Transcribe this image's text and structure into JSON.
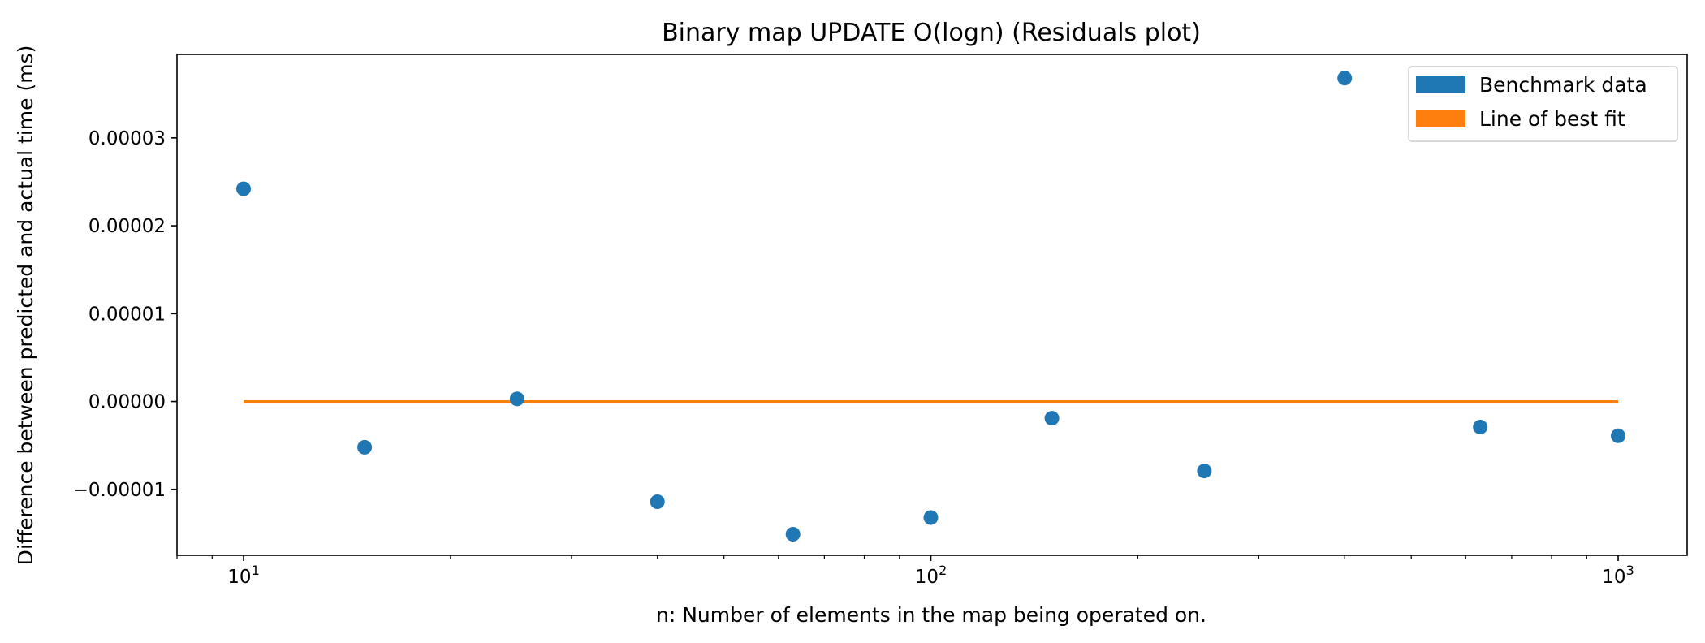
{
  "chart_data": {
    "type": "scatter",
    "title": "Binary map UPDATE O(logn)  (Residuals plot)",
    "xlabel": "n: Number of elements in the map being operated on.",
    "ylabel": "Difference between predicted and actual time (ms)",
    "xscale": "log",
    "xlim": [
      8.0,
      1260
    ],
    "ylim": [
      -1.75e-05,
      3.95e-05
    ],
    "x_ticks": [
      {
        "value": 10,
        "base": "10",
        "exp": "1"
      },
      {
        "value": 100,
        "base": "10",
        "exp": "2"
      },
      {
        "value": 1000,
        "base": "10",
        "exp": "3"
      }
    ],
    "y_ticks": [
      {
        "value": -1e-05,
        "label": "−0.00001"
      },
      {
        "value": 0,
        "label": "0.00000"
      },
      {
        "value": 1e-05,
        "label": "0.00001"
      },
      {
        "value": 2e-05,
        "label": "0.00002"
      },
      {
        "value": 3e-05,
        "label": "0.00003"
      }
    ],
    "series": [
      {
        "name": "Benchmark data",
        "kind": "points",
        "color": "#1f77b4",
        "x": [
          10,
          15,
          25,
          40,
          63,
          100,
          150,
          250,
          400,
          630,
          1000
        ],
        "y": [
          2.42e-05,
          -5.2e-06,
          3e-07,
          -1.14e-05,
          -1.51e-05,
          -1.32e-05,
          -1.9e-06,
          -7.9e-06,
          3.68e-05,
          -2.9e-06,
          -3.9e-06
        ]
      },
      {
        "name": "Line of best fit",
        "kind": "line",
        "color": "#ff7f0e",
        "x": [
          10,
          1000
        ],
        "y": [
          0,
          0
        ]
      }
    ],
    "legend": {
      "position": "top-right",
      "entries": [
        {
          "label": "Benchmark data",
          "color": "#1f77b4"
        },
        {
          "label": "Line of best fit",
          "color": "#ff7f0e"
        }
      ]
    },
    "grid": false
  }
}
